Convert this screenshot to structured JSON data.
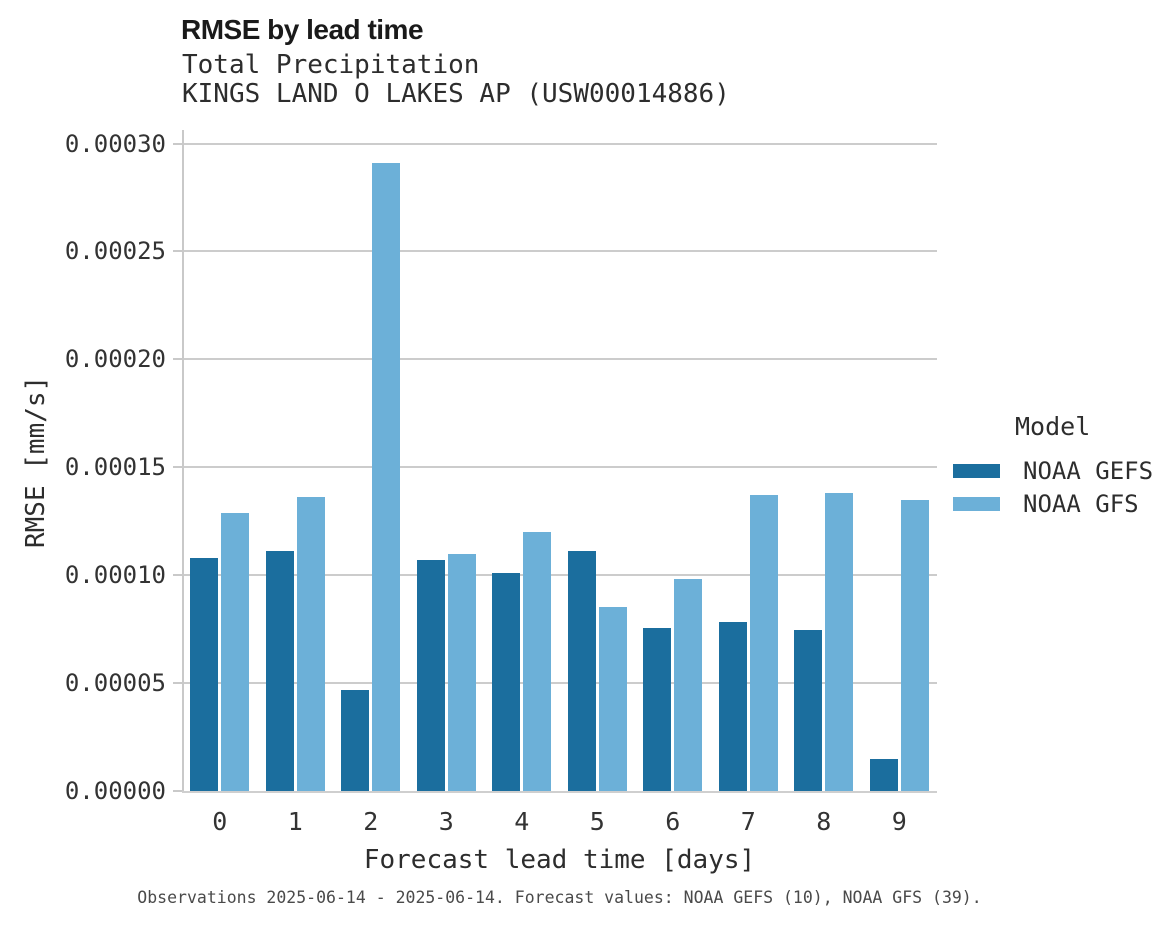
{
  "header": {
    "title": "RMSE by lead time",
    "subtitle_variable": "Total Precipitation",
    "subtitle_station": "KINGS LAND O LAKES AP (USW00014886)"
  },
  "legend": {
    "title": "Model",
    "items": [
      {
        "label": "NOAA GEFS",
        "color": "#1b6e9e"
      },
      {
        "label": "NOAA GFS",
        "color": "#6cb0d8"
      }
    ]
  },
  "footer": {
    "caption": "Observations 2025-06-14 - 2025-06-14. Forecast values: NOAA GEFS (10), NOAA GFS (39)."
  },
  "colors": {
    "gefs_bar": "#1b6e9e",
    "gfs_bar": "#6cb0d8",
    "gridline": "#cccccc",
    "spine": "#c9c9c9",
    "title_text": "#1a1a1a",
    "tick_text": "#333333",
    "caption_text": "#4a4a4a"
  },
  "chart_data": {
    "type": "bar",
    "title": "RMSE by lead time",
    "subtitle": [
      "Total Precipitation",
      "KINGS LAND O LAKES AP (USW00014886)"
    ],
    "xlabel": "Forecast lead time [days]",
    "ylabel": "RMSE [mm/s]",
    "ylim": [
      0,
      0.0003
    ],
    "grid": "horizontal",
    "legend_title": "Model",
    "legend_position": "right",
    "categories": [
      0,
      1,
      2,
      3,
      4,
      5,
      6,
      7,
      8,
      9
    ],
    "xticks": [
      "0",
      "1",
      "2",
      "3",
      "4",
      "5",
      "6",
      "7",
      "8",
      "9"
    ],
    "yticks": [
      {
        "value": 0.0,
        "label": "0.00000"
      },
      {
        "value": 5e-05,
        "label": "0.00005"
      },
      {
        "value": 0.0001,
        "label": "0.00010"
      },
      {
        "value": 0.00015,
        "label": "0.00015"
      },
      {
        "value": 0.0002,
        "label": "0.00020"
      },
      {
        "value": 0.00025,
        "label": "0.00025"
      },
      {
        "value": 0.0003,
        "label": "0.00030"
      }
    ],
    "series": [
      {
        "name": "NOAA GEFS",
        "color": "#1b6e9e",
        "values": [
          0.000108,
          0.000111,
          4.7e-05,
          0.000107,
          0.000101,
          0.000111,
          7.55e-05,
          7.85e-05,
          7.45e-05,
          1.48e-05
        ]
      },
      {
        "name": "NOAA GFS",
        "color": "#6cb0d8",
        "values": [
          0.000129,
          0.000136,
          0.000291,
          0.00011,
          0.00012,
          8.52e-05,
          9.82e-05,
          0.000137,
          0.000138,
          0.000135
        ]
      }
    ],
    "caption": "Observations 2025-06-14 - 2025-06-14. Forecast values: NOAA GEFS (10), NOAA GFS (39)."
  }
}
